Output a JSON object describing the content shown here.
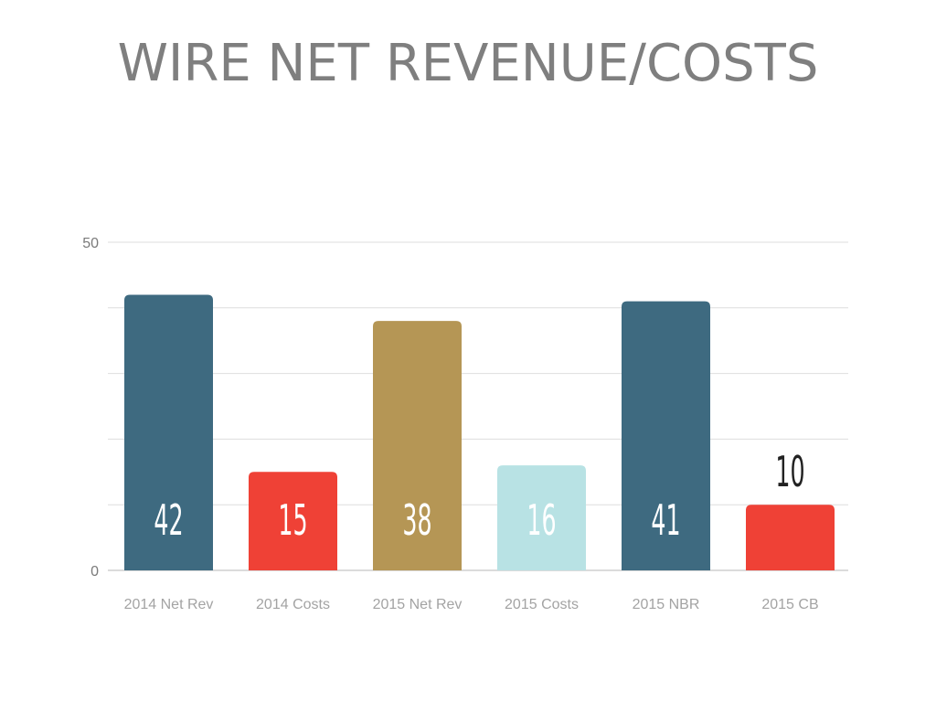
{
  "chart_data": {
    "type": "bar",
    "title": "WIRE NET REVENUE/COSTS",
    "categories": [
      "2014 Net Rev",
      "2014 Costs",
      "2015 Net Rev",
      "2015 Costs",
      "2015 NBR",
      "2015 CB"
    ],
    "values": [
      42,
      15,
      38,
      16,
      41,
      10
    ],
    "value_labels": [
      "42",
      "15",
      "38",
      "16",
      "41",
      "10"
    ],
    "colors": [
      "#3e6a80",
      "#ef4136",
      "#b59655",
      "#b8e2e4",
      "#3e6a80",
      "#ef4136"
    ],
    "label_placement": [
      "inside",
      "inside",
      "inside",
      "inside",
      "inside",
      "above"
    ],
    "ylim": [
      0,
      50
    ],
    "yticks": [
      "0",
      "50"
    ],
    "grid": true,
    "xlabel": "",
    "ylabel": ""
  }
}
